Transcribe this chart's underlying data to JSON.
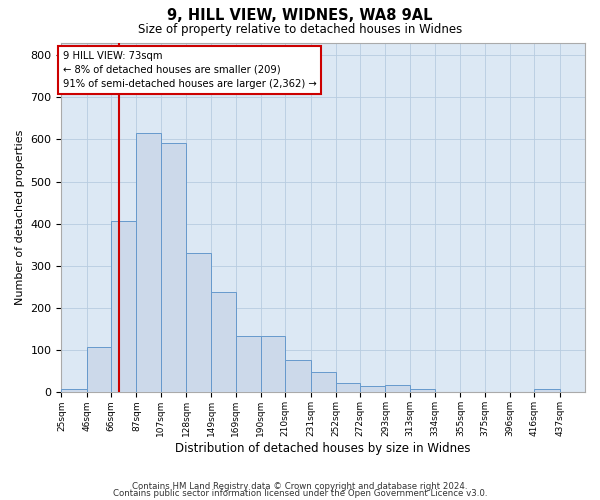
{
  "title1": "9, HILL VIEW, WIDNES, WA8 9AL",
  "title2": "Size of property relative to detached houses in Widnes",
  "xlabel": "Distribution of detached houses by size in Widnes",
  "ylabel": "Number of detached properties",
  "bin_edges": [
    25,
    46,
    66,
    87,
    107,
    128,
    149,
    169,
    190,
    210,
    231,
    252,
    272,
    293,
    313,
    334,
    355,
    375,
    396,
    416,
    437
  ],
  "bar_heights": [
    8,
    108,
    407,
    616,
    592,
    330,
    238,
    135,
    135,
    78,
    48,
    22,
    15,
    18,
    8,
    0,
    0,
    0,
    0,
    8,
    0
  ],
  "bar_color": "#ccd9ea",
  "bar_edge_color": "#6699cc",
  "grid_color": "#b8cce0",
  "background_color": "#dce8f4",
  "property_line_x": 73,
  "property_line_color": "#cc0000",
  "annotation_text": "9 HILL VIEW: 73sqm\n← 8% of detached houses are smaller (209)\n91% of semi-detached houses are larger (2,362) →",
  "annotation_box_color": "#cc0000",
  "ylim": [
    0,
    830
  ],
  "yticks": [
    0,
    100,
    200,
    300,
    400,
    500,
    600,
    700,
    800
  ],
  "footnote1": "Contains HM Land Registry data © Crown copyright and database right 2024.",
  "footnote2": "Contains public sector information licensed under the Open Government Licence v3.0."
}
